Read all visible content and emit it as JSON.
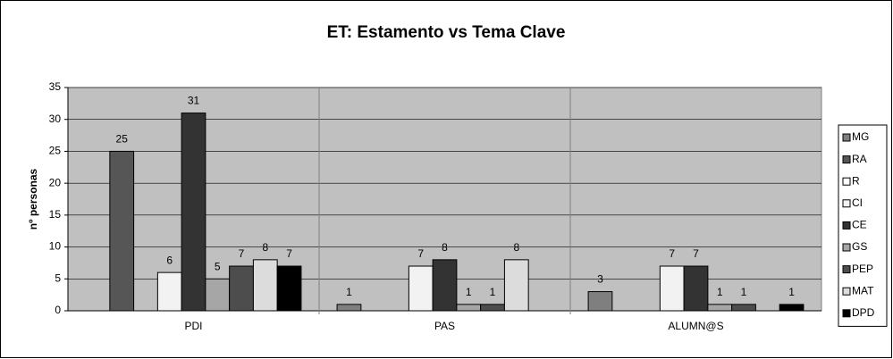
{
  "chart_data": {
    "type": "bar",
    "title": "ET: Estamento vs Tema Clave",
    "y_label": "nº personas",
    "categories": [
      "PDI",
      "PAS",
      "ALUMN@S"
    ],
    "series": [
      {
        "name": "MG",
        "color": "#7f7f7f",
        "values": [
          0,
          1,
          3
        ]
      },
      {
        "name": "RA",
        "color": "#565656",
        "values": [
          25,
          0,
          0
        ]
      },
      {
        "name": "R",
        "color": "#ffffff",
        "values": [
          0,
          0,
          0
        ]
      },
      {
        "name": "CI",
        "color": "#f2f2f2",
        "values": [
          6,
          7,
          7
        ]
      },
      {
        "name": "CE",
        "color": "#333333",
        "values": [
          31,
          8,
          7
        ]
      },
      {
        "name": "GS",
        "color": "#a6a6a6",
        "values": [
          5,
          1,
          1
        ]
      },
      {
        "name": "PEP",
        "color": "#4d4d4d",
        "values": [
          7,
          1,
          1
        ]
      },
      {
        "name": "MAT",
        "color": "#dcdcdc",
        "values": [
          8,
          8,
          0
        ]
      },
      {
        "name": "DPD",
        "color": "#000000",
        "values": [
          7,
          0,
          1
        ]
      }
    ],
    "ylim": [
      0,
      35
    ],
    "yticks": [
      0,
      5,
      10,
      15,
      20,
      25,
      30,
      35
    ],
    "grid": true,
    "legend": "right"
  }
}
